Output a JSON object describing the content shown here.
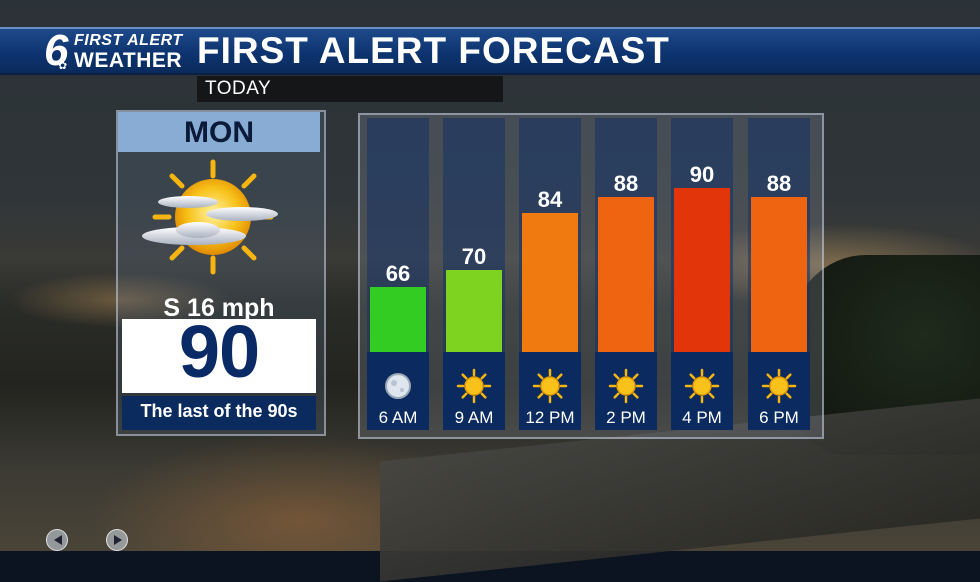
{
  "header": {
    "logo_number": "6",
    "logo_line1": "FIRST ALERT",
    "logo_line2": "WEATHER",
    "title": "FIRST ALERT FORECAST"
  },
  "subheader": {
    "label": "TODAY"
  },
  "day_card": {
    "day": "MON",
    "icon": "partly-sunny-icon",
    "wind": "S 16 mph",
    "high": "90",
    "description": "The last of the 90s"
  },
  "chart_data": {
    "type": "bar",
    "title": "",
    "categories": [
      "6 AM",
      "9 AM",
      "12 PM",
      "2 PM",
      "4 PM",
      "6 PM"
    ],
    "values": [
      66,
      70,
      84,
      88,
      90,
      88
    ],
    "ylim": [
      50,
      95
    ],
    "colors": [
      "#33cc22",
      "#7ed320",
      "#f07a10",
      "#ef6410",
      "#e2360a",
      "#ef6410"
    ],
    "icons": [
      "clear-night-icon",
      "sun-icon",
      "sun-icon",
      "sun-icon",
      "sun-icon",
      "sun-icon"
    ]
  },
  "nav": {
    "prev_icon": "arrow-left-icon",
    "next_icon": "arrow-right-icon"
  }
}
